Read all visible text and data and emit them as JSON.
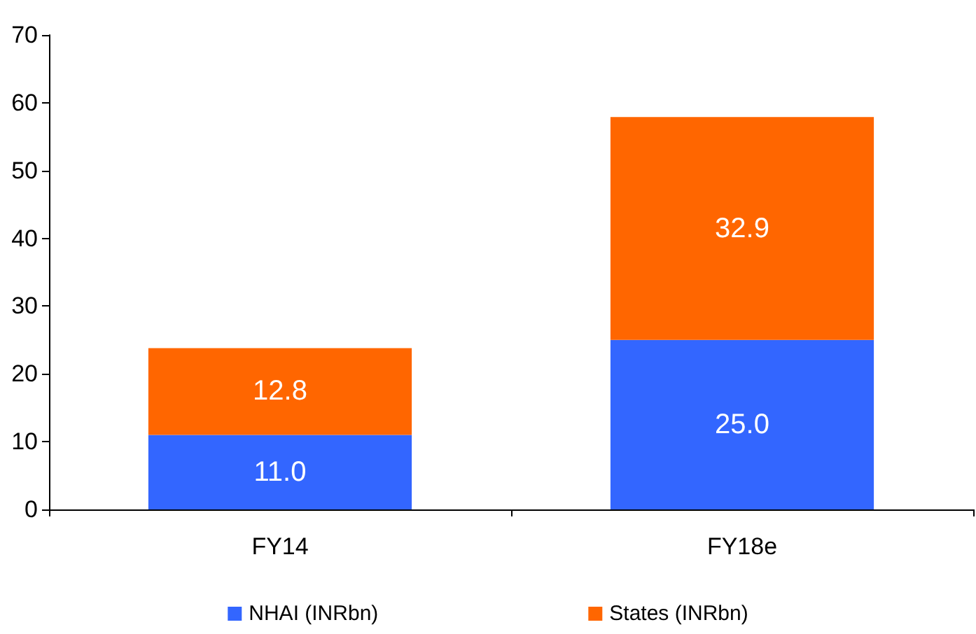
{
  "chart_data": {
    "type": "bar",
    "stacked": true,
    "categories": [
      "FY14",
      "FY18e"
    ],
    "series": [
      {
        "name": "NHAI (INRbn)",
        "color": "#3366ff",
        "values": [
          11.0,
          25.0
        ],
        "value_labels": [
          "11.0",
          "25.0"
        ]
      },
      {
        "name": "States (INRbn)",
        "color": "#ff6600",
        "values": [
          12.8,
          32.9
        ],
        "value_labels": [
          "12.8",
          "32.9"
        ]
      }
    ],
    "ylim": [
      0,
      70
    ],
    "yticks": [
      0,
      10,
      20,
      30,
      40,
      50,
      60,
      70
    ],
    "grid": false,
    "legend": "bottom"
  }
}
